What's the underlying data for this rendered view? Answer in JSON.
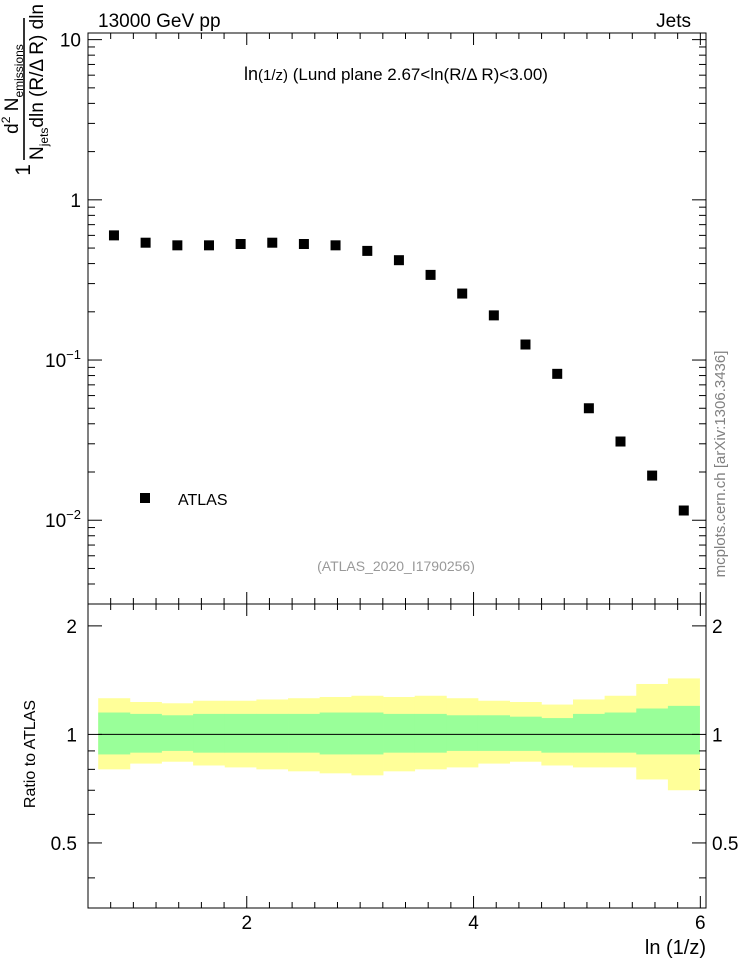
{
  "header": {
    "left": "13000 GeV pp",
    "right": "Jets"
  },
  "side_label": "mcplots.cern.ch [arXiv:1306.3436]",
  "watermark": "(ATLAS_2020_I1790256)",
  "chart_data": [
    {
      "type": "scatter",
      "panel": "main",
      "title_prefix": "ln",
      "title_sub": "(1/z)",
      "title_rest": " (Lund plane 2.67<ln(R/Δ R)<3.00)",
      "xlabel": "ln (1/z)",
      "ylabel": {
        "prefix": "1",
        "denominator_main": "N",
        "denominator_sub": "jets",
        "denominator_rest": "dln (R/Δ R) dln (1/z)",
        "numerator_main": "d",
        "numerator_sup": "2",
        "numerator_N": " N",
        "numerator_sub": "emissions"
      },
      "yscale": "log",
      "xlim": [
        0.6,
        6.05
      ],
      "ylim": [
        0.003,
        11
      ],
      "yticks": [
        {
          "value": 0.01,
          "label_base": "10",
          "label_exp": "−2"
        },
        {
          "value": 0.1,
          "label_base": "10",
          "label_exp": "−1"
        },
        {
          "value": 1,
          "label_base": "1",
          "label_exp": ""
        },
        {
          "value": 10,
          "label_base": "10",
          "label_exp": ""
        }
      ],
      "series": [
        {
          "name": "ATLAS",
          "marker": "square",
          "color": "#000000",
          "x": [
            0.829,
            1.108,
            1.388,
            1.667,
            1.946,
            2.225,
            2.504,
            2.783,
            3.063,
            3.342,
            3.621,
            3.9,
            4.179,
            4.458,
            4.738,
            5.017,
            5.296,
            5.575,
            5.854
          ],
          "y": [
            0.6,
            0.54,
            0.52,
            0.52,
            0.53,
            0.54,
            0.53,
            0.52,
            0.48,
            0.42,
            0.34,
            0.26,
            0.19,
            0.125,
            0.082,
            0.05,
            0.031,
            0.019,
            0.0115
          ]
        }
      ],
      "legend": {
        "position": "bottom-left",
        "label": "ATLAS"
      }
    },
    {
      "type": "area",
      "panel": "ratio",
      "xlabel": "ln (1/z)",
      "ylabel": "Ratio to ATLAS",
      "xlim": [
        0.6,
        6.05
      ],
      "ylim": [
        0.33,
        2.3
      ],
      "xticks": [
        2,
        4,
        6
      ],
      "yticks": [
        0.5,
        1,
        2
      ],
      "reference_line": 1,
      "bin_edges": [
        0.69,
        0.969,
        1.248,
        1.527,
        1.806,
        2.085,
        2.364,
        2.643,
        2.923,
        3.202,
        3.481,
        3.76,
        4.039,
        4.318,
        4.598,
        4.877,
        5.156,
        5.435,
        5.714,
        5.993
      ],
      "bands": [
        {
          "name": "stat",
          "color": "#99ff99",
          "lower": [
            0.88,
            0.89,
            0.9,
            0.89,
            0.89,
            0.89,
            0.89,
            0.88,
            0.88,
            0.89,
            0.89,
            0.9,
            0.9,
            0.9,
            0.89,
            0.89,
            0.89,
            0.88,
            0.88
          ],
          "upper": [
            1.15,
            1.14,
            1.13,
            1.14,
            1.14,
            1.14,
            1.14,
            1.15,
            1.15,
            1.14,
            1.14,
            1.13,
            1.13,
            1.12,
            1.11,
            1.14,
            1.15,
            1.18,
            1.2
          ]
        },
        {
          "name": "total",
          "color": "#ffff99",
          "lower": [
            0.8,
            0.83,
            0.84,
            0.82,
            0.81,
            0.8,
            0.79,
            0.78,
            0.77,
            0.79,
            0.8,
            0.81,
            0.83,
            0.84,
            0.82,
            0.81,
            0.81,
            0.75,
            0.7
          ],
          "upper": [
            1.26,
            1.23,
            1.22,
            1.24,
            1.24,
            1.25,
            1.26,
            1.27,
            1.28,
            1.27,
            1.28,
            1.26,
            1.24,
            1.23,
            1.21,
            1.25,
            1.28,
            1.38,
            1.43
          ]
        }
      ]
    }
  ]
}
